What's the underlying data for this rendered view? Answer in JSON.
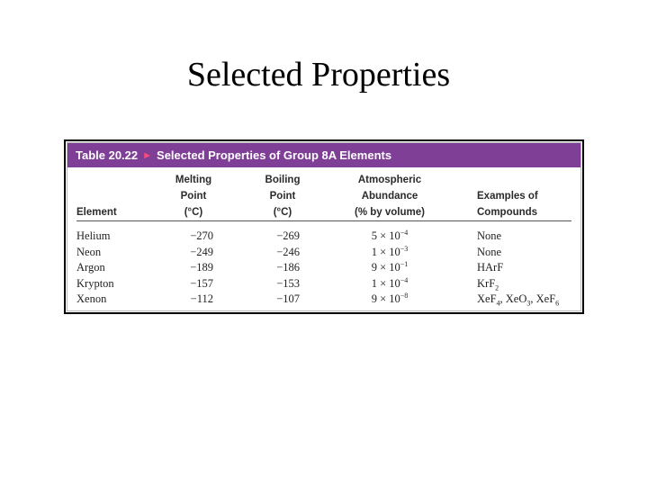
{
  "slide": {
    "title": "Selected Properties"
  },
  "table": {
    "caption_number": "Table 20.22",
    "caption_marker": "►",
    "caption_title": "Selected Properties of Group 8A Elements",
    "colors": {
      "caption_bar": "#7f3f97",
      "caption_marker": "#ff4a7a"
    },
    "headers": {
      "element": [
        "Element"
      ],
      "melting": [
        "Melting",
        "Point",
        "(°C)"
      ],
      "boiling": [
        "Boiling",
        "Point",
        "(°C)"
      ],
      "abundance": [
        "Atmospheric",
        "Abundance",
        "(% by volume)"
      ],
      "examples": [
        "Examples of",
        "Compounds"
      ]
    },
    "rows": [
      {
        "element": "Helium",
        "melting": "−270",
        "boiling": "−269",
        "abundance_mantissa": "5 × 10",
        "abundance_exponent": "−4",
        "examples": [
          {
            "text": "None",
            "sub": ""
          }
        ]
      },
      {
        "element": "Neon",
        "melting": "−249",
        "boiling": "−246",
        "abundance_mantissa": "1 × 10",
        "abundance_exponent": "−3",
        "examples": [
          {
            "text": "None",
            "sub": ""
          }
        ]
      },
      {
        "element": "Argon",
        "melting": "−189",
        "boiling": "−186",
        "abundance_mantissa": "9 × 10",
        "abundance_exponent": "−1",
        "examples": [
          {
            "text": "HArF",
            "sub": ""
          }
        ]
      },
      {
        "element": "Krypton",
        "melting": "−157",
        "boiling": "−153",
        "abundance_mantissa": "1 × 10",
        "abundance_exponent": "−4",
        "examples": [
          {
            "text": "KrF",
            "sub": "2"
          }
        ]
      },
      {
        "element": "Xenon",
        "melting": "−112",
        "boiling": "−107",
        "abundance_mantissa": "9 × 10",
        "abundance_exponent": "−8",
        "examples": [
          {
            "text": "XeF",
            "sub": "4"
          },
          {
            "text": ", XeO",
            "sub": "3"
          },
          {
            "text": ", XeF",
            "sub": "6"
          }
        ]
      }
    ]
  }
}
